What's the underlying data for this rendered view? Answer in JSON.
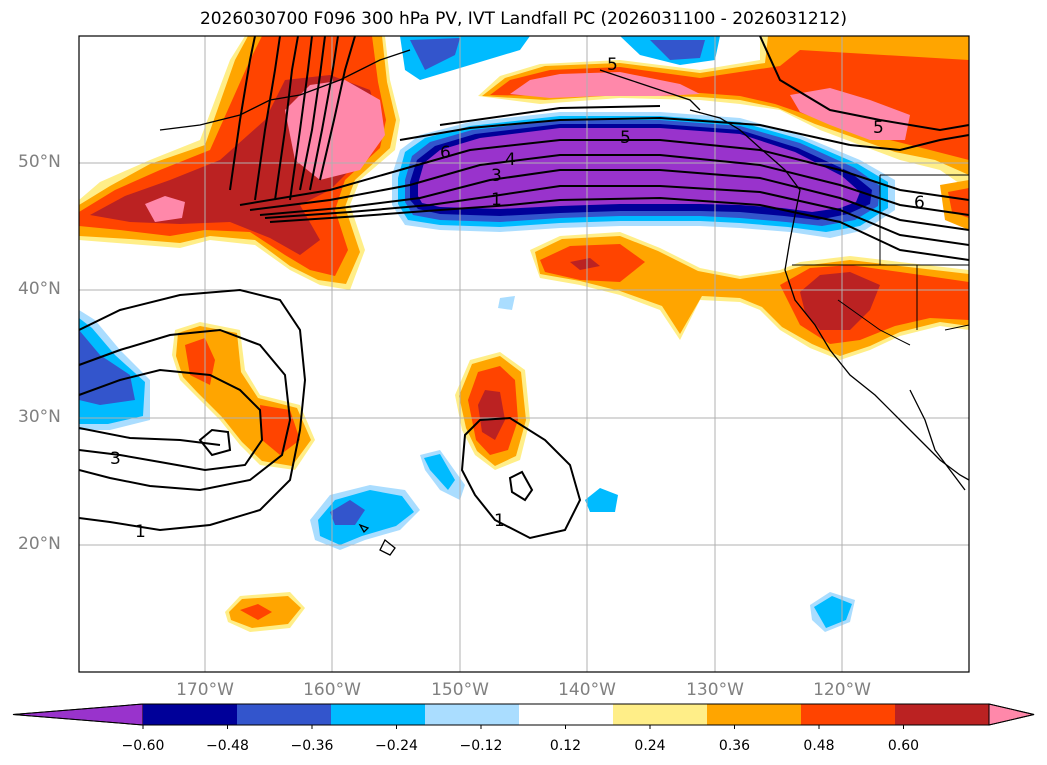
{
  "title": "2026030700 F096 300 hPa PV, IVT Landfall PC (2026031100 - 2026031212)",
  "lat_labels": [
    "50°N",
    "40°N",
    "30°N",
    "20°N"
  ],
  "lon_labels": [
    "170°W",
    "160°W",
    "150°W",
    "140°W",
    "130°W",
    "120°W"
  ],
  "colorbar": {
    "ticks": [
      "−0.60",
      "−0.48",
      "−0.36",
      "−0.24",
      "−0.12",
      "0.12",
      "0.24",
      "0.36",
      "0.48",
      "0.60"
    ],
    "colors": [
      "#9933cc",
      "#000099",
      "#3355cc",
      "#00bbff",
      "#aaddff",
      "#ffffff",
      "#ffee88",
      "#ffa500",
      "#ff4400",
      "#bb2222",
      "#ff88aa"
    ]
  },
  "contour_labels": [
    "1",
    "3",
    "4",
    "5",
    "6",
    "5",
    "5",
    "6",
    "3",
    "1",
    "1"
  ]
}
